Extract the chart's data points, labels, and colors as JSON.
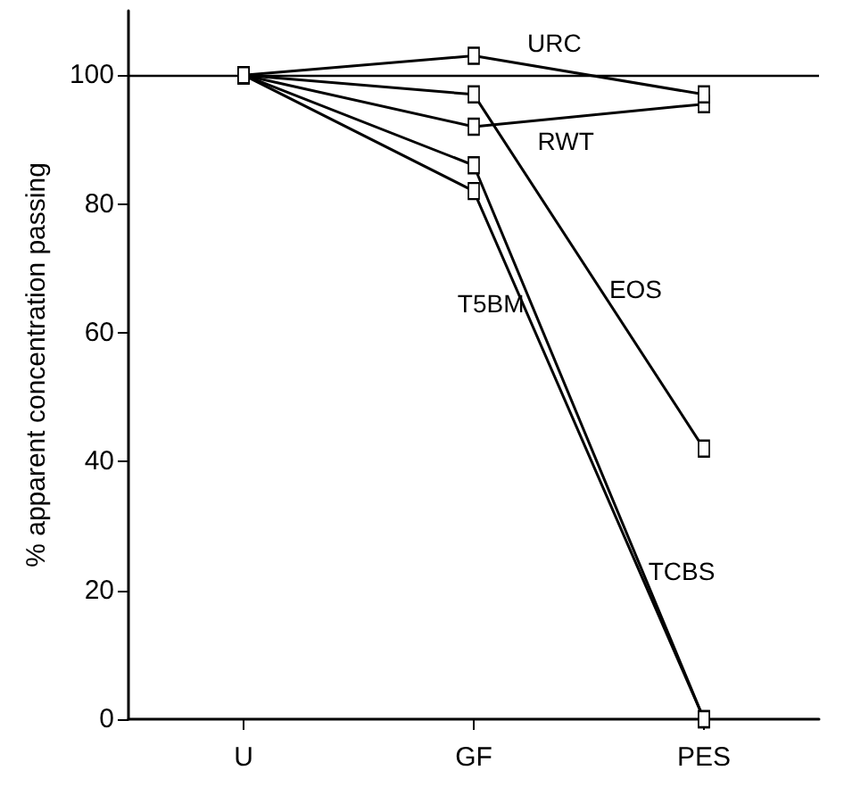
{
  "chart_data": {
    "type": "line",
    "ylabel": "% apparent concentration passing",
    "categories": [
      "U",
      "GF",
      "PES"
    ],
    "series": [
      {
        "name": "URC",
        "color": "#000000",
        "values": [
          100,
          103,
          97
        ]
      },
      {
        "name": "RWT",
        "color": "#000000",
        "values": [
          100,
          92,
          95.5
        ]
      },
      {
        "name": "EOS",
        "color": "#000000",
        "values": [
          100,
          97,
          42
        ]
      },
      {
        "name": "T5BM",
        "color": "#000000",
        "values": [
          100,
          86,
          0
        ]
      },
      {
        "name": "TCBS",
        "color": "#000000",
        "values": [
          100,
          82,
          0
        ]
      }
    ],
    "ylim": [
      0,
      110
    ],
    "yticks": [
      0,
      20,
      40,
      60,
      80,
      100
    ],
    "ref_lines": [
      {
        "axis": "y",
        "value": 100,
        "color": "#000000"
      }
    ],
    "marker": "square",
    "line_style": "solid",
    "grid": false,
    "legend": false
  }
}
